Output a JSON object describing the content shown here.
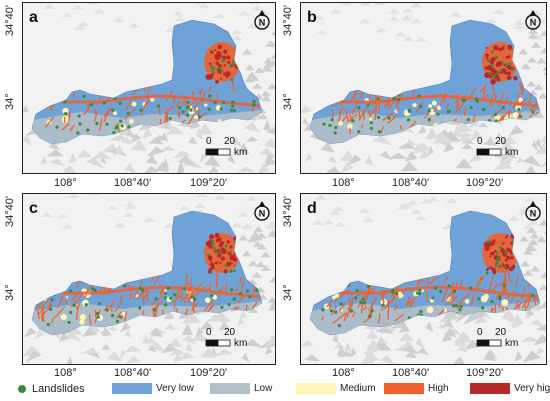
{
  "panels": [
    {
      "letter": "a"
    },
    {
      "letter": "b"
    },
    {
      "letter": "c"
    },
    {
      "letter": "d"
    }
  ],
  "axes": {
    "lat_top": "34°40'",
    "lat_mid": "34°",
    "lon_1": "108°",
    "lon_2": "108°40'",
    "lon_3": "109°20'"
  },
  "scalebar": {
    "zero": "0",
    "value": "20",
    "unit": "km"
  },
  "north_arrow": {
    "letter": "N",
    "icon": "north-arrow-icon"
  },
  "legend": {
    "landslides": "Landslides",
    "very_low": "Very low",
    "low": "Low",
    "medium": "Medium",
    "high": "High",
    "very_high": "Very high"
  },
  "colors": {
    "very_low": "#6fa3d8",
    "low": "#b3bfca",
    "medium": "#fff6b8",
    "high": "#f0602c",
    "very_high": "#b5292a",
    "landslide": "#3a8a3a"
  }
}
